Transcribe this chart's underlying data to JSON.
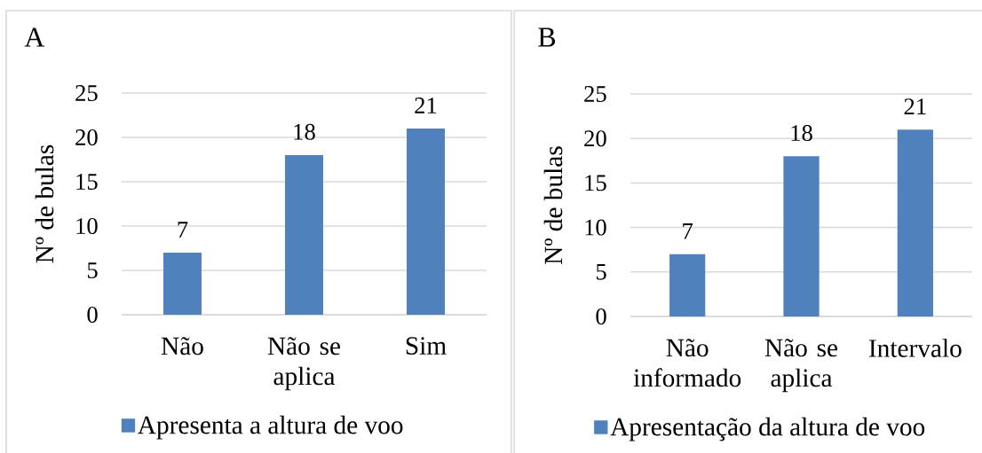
{
  "chart_data": [
    {
      "type": "bar",
      "title": "A",
      "ylabel": "Nº de bulas",
      "categories": [
        "Não",
        "Não se aplica",
        "Sim"
      ],
      "series": [
        {
          "name": "Apresenta a altura de voo",
          "color": "#4f81bd",
          "values": [
            7,
            18,
            21
          ]
        }
      ],
      "ylim": [
        0,
        25
      ],
      "yticks": [
        0,
        5,
        10,
        15,
        20,
        25
      ],
      "grid": "y",
      "legend": "bottom",
      "data_labels": true
    },
    {
      "type": "bar",
      "title": "B",
      "ylabel": "Nº de bulas",
      "categories": [
        "Não informado",
        "Não se aplica",
        "Intervalo"
      ],
      "series": [
        {
          "name": "Apresentação da altura de voo",
          "color": "#4f81bd",
          "values": [
            7,
            18,
            21
          ]
        }
      ],
      "ylim": [
        0,
        25
      ],
      "yticks": [
        0,
        5,
        10,
        15,
        20,
        25
      ],
      "grid": "y",
      "legend": "bottom",
      "data_labels": true
    }
  ]
}
